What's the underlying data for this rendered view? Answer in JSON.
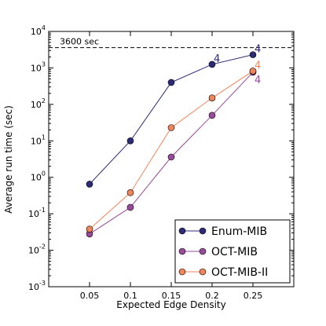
{
  "chart_data": {
    "type": "line",
    "xlabel": "Expected Edge Density",
    "ylabel": "Average run time (sec)",
    "y_scale": "log",
    "xlim": [
      0.0,
      0.3
    ],
    "ylim": [
      0.001,
      10000
    ],
    "x_ticks": [
      "0.05",
      "0.1",
      "0.15",
      "0.2",
      "0.25"
    ],
    "x_tick_values": [
      0.05,
      0.1,
      0.15,
      0.2,
      0.25
    ],
    "y_ticks": [
      {
        "value": 0.001,
        "base": "10",
        "exp": "-3"
      },
      {
        "value": 0.01,
        "base": "10",
        "exp": "-2"
      },
      {
        "value": 0.1,
        "base": "10",
        "exp": "-1"
      },
      {
        "value": 1,
        "base": "10",
        "exp": "0"
      },
      {
        "value": 10,
        "base": "10",
        "exp": "1"
      },
      {
        "value": 100,
        "base": "10",
        "exp": "2"
      },
      {
        "value": 1000,
        "base": "10",
        "exp": "3"
      },
      {
        "value": 10000,
        "base": "10",
        "exp": "4"
      }
    ],
    "threshold": {
      "value": 3600,
      "label": "3600 sec"
    },
    "legend_position": "lower-right",
    "grid": false,
    "series": [
      {
        "name": "Enum-MIB",
        "color": "#2d2a7a",
        "x": [
          0.05,
          0.1,
          0.15,
          0.2,
          0.25
        ],
        "values": [
          0.65,
          10,
          400,
          1250,
          2300
        ]
      },
      {
        "name": "OCT-MIB",
        "color": "#9a4a9c",
        "x": [
          0.05,
          0.1,
          0.15,
          0.2,
          0.25
        ],
        "values": [
          0.028,
          0.15,
          3.6,
          50,
          760
        ]
      },
      {
        "name": "OCT-MIB-II",
        "color": "#f0845a",
        "x": [
          0.05,
          0.1,
          0.15,
          0.2,
          0.25
        ],
        "values": [
          0.038,
          0.38,
          23,
          150,
          820
        ]
      }
    ],
    "annotations": [
      {
        "text": "4",
        "series": 0,
        "x": 0.2,
        "y": 1250,
        "color": "#2d2a7a"
      },
      {
        "text": "4",
        "series": 0,
        "x": 0.25,
        "y": 2300,
        "color": "#2d2a7a"
      },
      {
        "text": "4",
        "series": 2,
        "x": 0.25,
        "y": 820,
        "color": "#f0845a"
      },
      {
        "text": "4",
        "series": 1,
        "x": 0.25,
        "y": 760,
        "color": "#9a4a9c"
      }
    ]
  }
}
